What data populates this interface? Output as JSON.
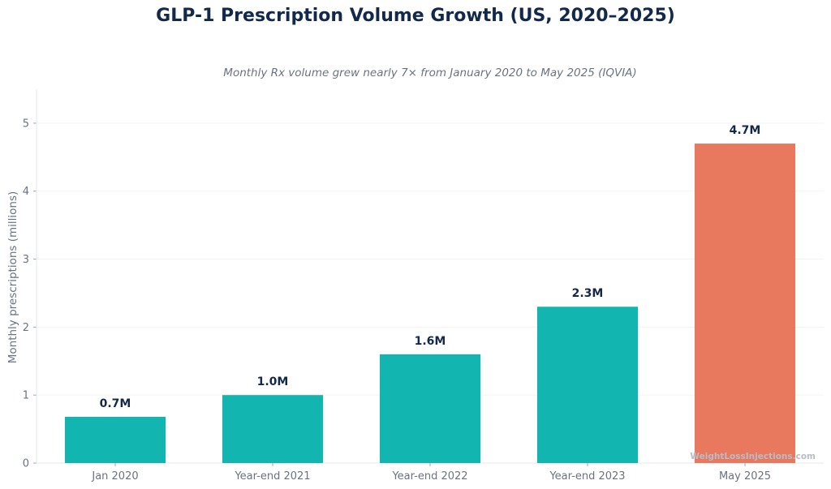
{
  "chart_data": {
    "type": "bar",
    "title": "GLP-1 Prescription Volume Growth (US, 2020–2025)",
    "subtitle": "Monthly Rx volume grew nearly 7× from January 2020 to May 2025 (IQVIA)",
    "xlabel": "",
    "ylabel": "Monthly prescriptions (millions)",
    "categories": [
      "Jan 2020",
      "Year-end 2021",
      "Year-end 2022",
      "Year-end 2023",
      "May 2025"
    ],
    "values": [
      0.68,
      1.0,
      1.6,
      2.3,
      4.7
    ],
    "data_labels": [
      "0.7M",
      "1.0M",
      "1.6M",
      "2.3M",
      "4.7M"
    ],
    "ylim": [
      0,
      5.5
    ],
    "yticks": [
      0,
      1,
      2,
      3,
      4,
      5
    ],
    "ytick_labels": [
      "0",
      "1",
      "2",
      "3",
      "4",
      "5"
    ],
    "grid": "horizontal",
    "legend": "none",
    "colors": {
      "bar": "#13b5b1",
      "highlight": "#e8795e",
      "title": "#13294b",
      "subtitle": "#6b7280",
      "axis_text": "#6b7280",
      "data_label": "#13294b",
      "grid": "#f1f3f5",
      "axis_line": "#e5e7eb",
      "watermark": "#b8bcc4"
    },
    "highlight_index": 4
  },
  "watermark": "WeightLossInjections.com"
}
